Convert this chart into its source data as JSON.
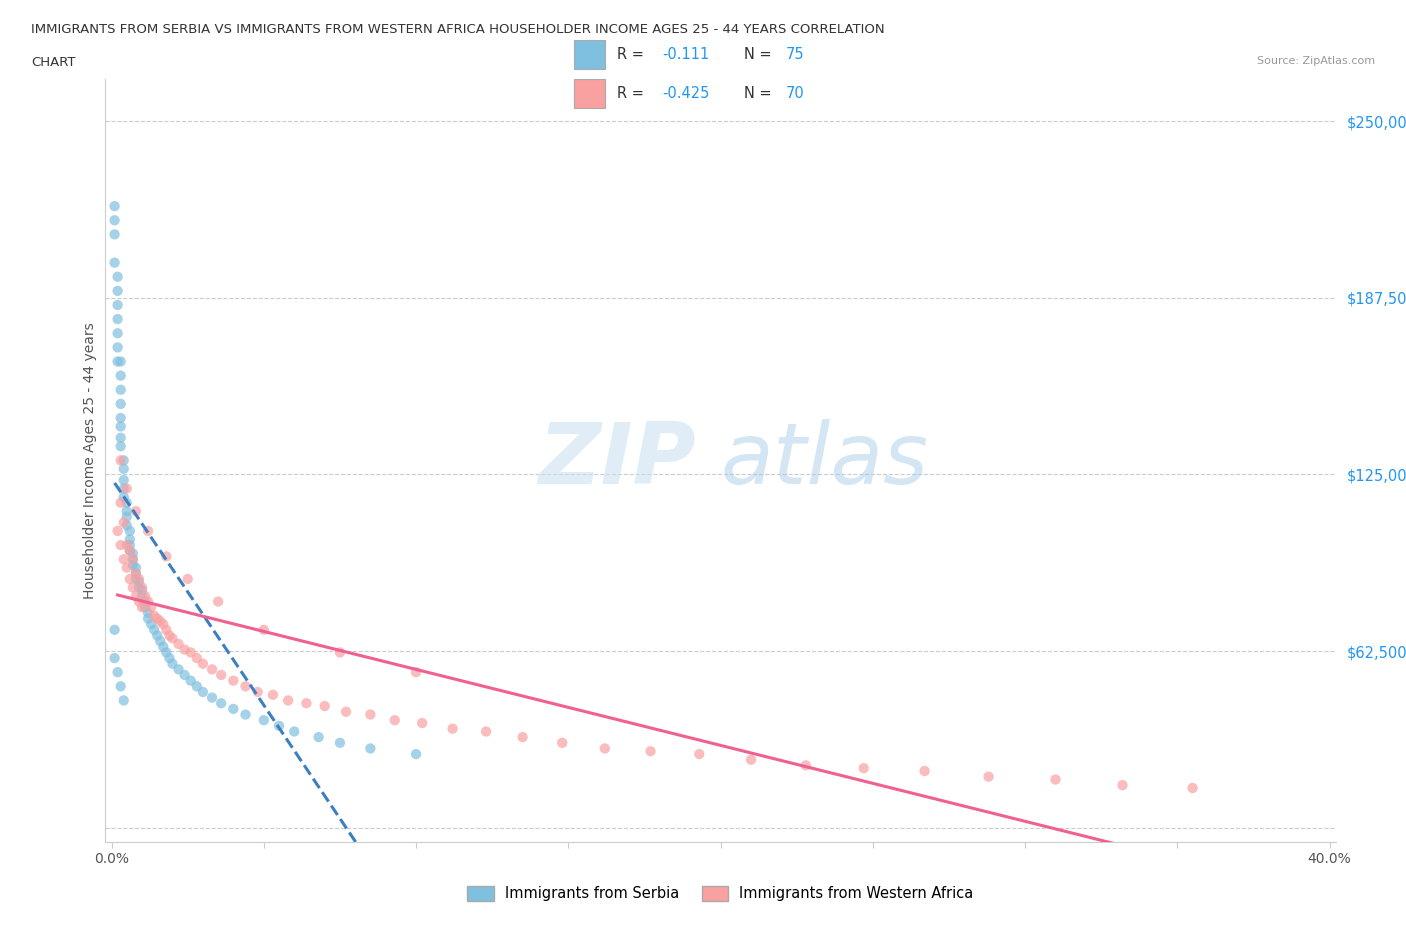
{
  "title_line1": "IMMIGRANTS FROM SERBIA VS IMMIGRANTS FROM WESTERN AFRICA HOUSEHOLDER INCOME AGES 25 - 44 YEARS CORRELATION",
  "title_line2": "CHART",
  "source_text": "Source: ZipAtlas.com",
  "ylabel": "Householder Income Ages 25 - 44 years",
  "xlim": [
    -0.002,
    0.402
  ],
  "ylim": [
    -5000,
    265000
  ],
  "yticks": [
    0,
    62500,
    125000,
    187500,
    250000
  ],
  "ytick_labels": [
    "",
    "$62,500",
    "$125,000",
    "$187,500",
    "$250,000"
  ],
  "xticks": [
    0.0,
    0.05,
    0.1,
    0.15,
    0.2,
    0.25,
    0.3,
    0.35,
    0.4
  ],
  "xtick_labels": [
    "0.0%",
    "",
    "",
    "",
    "",
    "",
    "",
    "",
    "40.0%"
  ],
  "serbia_color": "#7fbfdf",
  "western_africa_color": "#f9a0a0",
  "serbia_line_color": "#3a7fc1",
  "western_africa_line_color": "#f06090",
  "watermark_zip": "ZIP",
  "watermark_atlas": "atlas",
  "legend_label_1": "Immigrants from Serbia",
  "legend_label_2": "Immigrants from Western Africa",
  "serbia_x": [
    0.001,
    0.001,
    0.001,
    0.001,
    0.002,
    0.002,
    0.002,
    0.002,
    0.002,
    0.002,
    0.002,
    0.003,
    0.003,
    0.003,
    0.003,
    0.003,
    0.003,
    0.003,
    0.003,
    0.004,
    0.004,
    0.004,
    0.004,
    0.004,
    0.005,
    0.005,
    0.005,
    0.005,
    0.006,
    0.006,
    0.006,
    0.006,
    0.007,
    0.007,
    0.007,
    0.008,
    0.008,
    0.008,
    0.009,
    0.009,
    0.01,
    0.01,
    0.011,
    0.011,
    0.012,
    0.012,
    0.013,
    0.014,
    0.015,
    0.016,
    0.017,
    0.018,
    0.019,
    0.02,
    0.022,
    0.024,
    0.026,
    0.028,
    0.03,
    0.033,
    0.036,
    0.04,
    0.044,
    0.05,
    0.055,
    0.06,
    0.068,
    0.075,
    0.085,
    0.1,
    0.001,
    0.001,
    0.002,
    0.003,
    0.004
  ],
  "serbia_y": [
    220000,
    215000,
    210000,
    200000,
    195000,
    190000,
    185000,
    180000,
    175000,
    170000,
    165000,
    165000,
    160000,
    155000,
    150000,
    145000,
    142000,
    138000,
    135000,
    130000,
    127000,
    123000,
    120000,
    117000,
    115000,
    112000,
    110000,
    107000,
    105000,
    102000,
    100000,
    98000,
    97000,
    95000,
    93000,
    92000,
    90000,
    88000,
    87000,
    85000,
    84000,
    82000,
    80000,
    78000,
    76000,
    74000,
    72000,
    70000,
    68000,
    66000,
    64000,
    62000,
    60000,
    58000,
    56000,
    54000,
    52000,
    50000,
    48000,
    46000,
    44000,
    42000,
    40000,
    38000,
    36000,
    34000,
    32000,
    30000,
    28000,
    26000,
    70000,
    60000,
    55000,
    50000,
    45000
  ],
  "western_africa_x": [
    0.002,
    0.003,
    0.003,
    0.004,
    0.004,
    0.005,
    0.005,
    0.006,
    0.006,
    0.007,
    0.007,
    0.008,
    0.008,
    0.009,
    0.009,
    0.01,
    0.01,
    0.011,
    0.012,
    0.013,
    0.014,
    0.015,
    0.016,
    0.017,
    0.018,
    0.019,
    0.02,
    0.022,
    0.024,
    0.026,
    0.028,
    0.03,
    0.033,
    0.036,
    0.04,
    0.044,
    0.048,
    0.053,
    0.058,
    0.064,
    0.07,
    0.077,
    0.085,
    0.093,
    0.102,
    0.112,
    0.123,
    0.135,
    0.148,
    0.162,
    0.177,
    0.193,
    0.21,
    0.228,
    0.247,
    0.267,
    0.288,
    0.31,
    0.332,
    0.355,
    0.003,
    0.005,
    0.008,
    0.012,
    0.018,
    0.025,
    0.035,
    0.05,
    0.075,
    0.1
  ],
  "western_africa_y": [
    105000,
    100000,
    115000,
    108000,
    95000,
    100000,
    92000,
    98000,
    88000,
    95000,
    85000,
    90000,
    82000,
    88000,
    80000,
    85000,
    78000,
    82000,
    80000,
    78000,
    75000,
    74000,
    73000,
    72000,
    70000,
    68000,
    67000,
    65000,
    63000,
    62000,
    60000,
    58000,
    56000,
    54000,
    52000,
    50000,
    48000,
    47000,
    45000,
    44000,
    43000,
    41000,
    40000,
    38000,
    37000,
    35000,
    34000,
    32000,
    30000,
    28000,
    27000,
    26000,
    24000,
    22000,
    21000,
    20000,
    18000,
    17000,
    15000,
    14000,
    130000,
    120000,
    112000,
    105000,
    96000,
    88000,
    80000,
    70000,
    62000,
    55000
  ]
}
